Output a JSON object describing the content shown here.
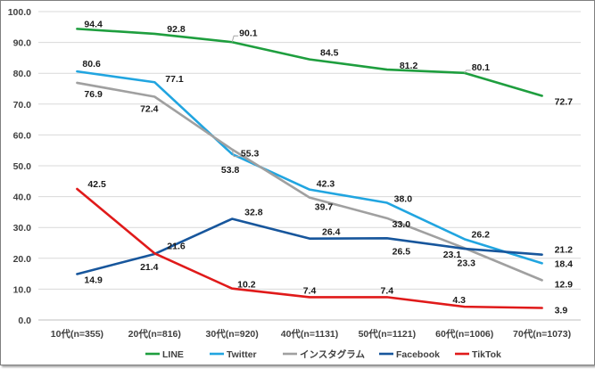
{
  "chart_data": {
    "type": "line",
    "title": "",
    "xlabel": "",
    "ylabel": "",
    "categories": [
      "10代(n=355)",
      "20代(n=816)",
      "30代(n=920)",
      "40代(n=1131)",
      "50代(n=1121)",
      "60代(n=1006)",
      "70代(n=1073)"
    ],
    "ylim": [
      0,
      100
    ],
    "yticks": [
      "0.0",
      "10.0",
      "20.0",
      "30.0",
      "40.0",
      "50.0",
      "60.0",
      "70.0",
      "80.0",
      "90.0",
      "100.0"
    ],
    "grid": true,
    "legend_position": "bottom",
    "series": [
      {
        "name": "LINE",
        "color": "#1e9e3e",
        "values": [
          94.4,
          92.8,
          90.1,
          84.5,
          81.2,
          80.1,
          72.7
        ],
        "labels": [
          "94.4",
          "92.8",
          "90.1",
          "84.5",
          "81.2",
          "80.1",
          "72.7"
        ]
      },
      {
        "name": "Twitter",
        "color": "#21a5e0",
        "values": [
          80.6,
          77.1,
          53.8,
          42.3,
          38.0,
          26.2,
          18.4
        ],
        "labels": [
          "80.6",
          "77.1",
          "53.8",
          "42.3",
          "38.0",
          "26.2",
          "18.4"
        ]
      },
      {
        "name": "インスタグラム",
        "color": "#a0a0a0",
        "values": [
          76.9,
          72.4,
          55.3,
          39.7,
          33.0,
          23.3,
          12.9
        ],
        "labels": [
          "76.9",
          "72.4",
          "55.3",
          "39.7",
          "33.0",
          "23.3",
          "12.9"
        ]
      },
      {
        "name": "Facebook",
        "color": "#17569c",
        "values": [
          14.9,
          21.4,
          32.8,
          26.4,
          26.5,
          23.1,
          21.2
        ],
        "labels": [
          "14.9",
          "21.4",
          "32.8",
          "26.4",
          "26.5",
          "23.1",
          "21.2"
        ]
      },
      {
        "name": "TikTok",
        "color": "#e01a1a",
        "values": [
          42.5,
          21.6,
          10.2,
          7.4,
          7.4,
          4.3,
          3.9
        ],
        "labels": [
          "42.5",
          "21.6",
          "10.2",
          "7.4",
          "7.4",
          "4.3",
          "3.9"
        ]
      }
    ]
  }
}
